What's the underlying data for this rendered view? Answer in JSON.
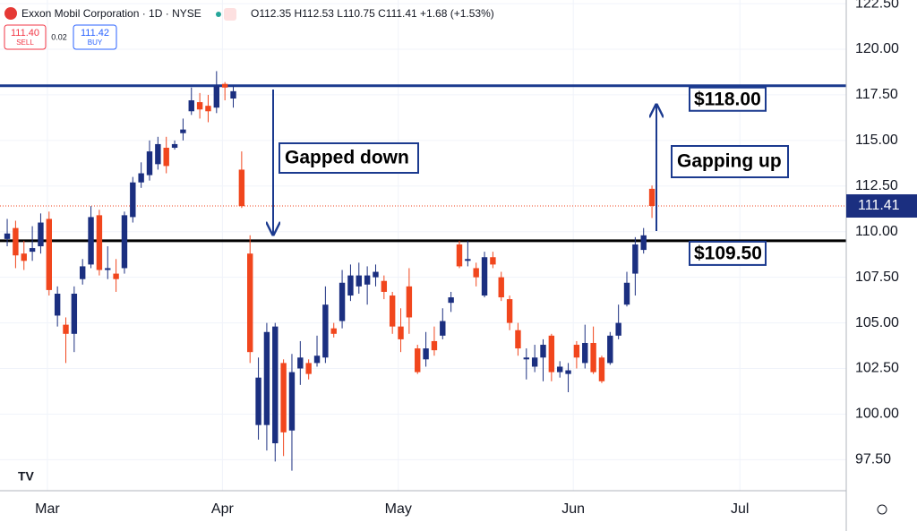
{
  "header": {
    "symbol": "Exxon Mobil Corporation · 1D · NYSE",
    "ohlc": "O112.35 H112.53 L110.75 C111.41 +1.68 (+1.53%)",
    "sell_price": "111.40",
    "sell": "SELL",
    "spread": "0.02",
    "buy_price": "111.42",
    "buy": "BUY"
  },
  "chart_data": {
    "type": "candlestick",
    "categories": [
      null,
      null,
      null,
      null,
      null,
      null,
      null,
      null,
      null,
      null,
      null,
      null,
      null,
      null,
      null,
      null,
      null,
      null,
      null,
      null,
      null,
      null,
      null,
      null,
      null,
      null,
      null,
      null,
      null,
      null,
      null,
      null,
      null,
      null,
      null,
      null,
      null,
      null,
      null,
      null,
      null,
      null,
      null,
      null,
      null,
      null,
      null,
      null,
      null,
      null,
      null,
      null,
      null,
      null,
      null,
      null,
      null,
      null,
      null,
      null,
      null,
      null,
      null,
      null,
      null,
      null,
      null,
      null,
      null,
      null,
      null,
      null,
      null,
      null,
      null,
      null,
      null,
      null
    ],
    "open": [
      109.6,
      110.2,
      108.8,
      108.9,
      109.2,
      110.7,
      105.4,
      104.9,
      104.4,
      107.4,
      108.2,
      110.9,
      107.9,
      107.7,
      108.0,
      110.8,
      112.7,
      113.1,
      113.7,
      114.6,
      114.6,
      115.4,
      116.6,
      117.1,
      116.9,
      116.8,
      118.1,
      117.3,
      113.4,
      108.8,
      99.4,
      99.4,
      98.4,
      102.8,
      99.1,
      102.5,
      102.8,
      102.8,
      103.1,
      104.7,
      105.1,
      106.5,
      107.0,
      107.1,
      107.5,
      107.3,
      106.5,
      104.8,
      107.0,
      103.6,
      103.0,
      104.0,
      104.3,
      106.1,
      109.3,
      108.4,
      108.0,
      106.5,
      108.6,
      107.5,
      106.3,
      104.6,
      103.0,
      102.6,
      103.1,
      104.3,
      102.3,
      102.2,
      103.8,
      102.8,
      103.9,
      103.1,
      102.8,
      104.3,
      106.0,
      107.7,
      109.0,
      112.35
    ],
    "high": [
      110.7,
      110.6,
      109.5,
      110.3,
      111.0,
      111.1,
      107.0,
      105.3,
      107.0,
      108.5,
      111.4,
      111.2,
      109.2,
      108.5,
      111.1,
      113.0,
      113.8,
      115.0,
      115.2,
      115.2,
      115.0,
      116.2,
      117.9,
      117.6,
      117.5,
      118.8,
      118.2,
      118.0,
      114.4,
      109.8,
      103.1,
      105.0,
      105.0,
      103.0,
      103.3,
      104.0,
      103.0,
      104.3,
      107.0,
      105.0,
      107.9,
      108.2,
      108.3,
      108.1,
      108.2,
      107.6,
      106.7,
      105.8,
      108.0,
      103.8,
      104.5,
      104.8,
      105.8,
      106.7,
      109.5,
      109.5,
      108.3,
      108.9,
      108.9,
      107.8,
      106.5,
      105.0,
      103.6,
      103.8,
      104.1,
      104.4,
      102.9,
      102.8,
      104.0,
      104.9,
      104.8,
      103.2,
      104.5,
      106.0,
      107.8,
      109.7,
      110.2,
      112.53
    ],
    "low": [
      109.2,
      108.0,
      107.9,
      108.4,
      108.8,
      106.5,
      104.8,
      102.8,
      103.4,
      107.1,
      108.0,
      107.6,
      107.4,
      106.7,
      107.7,
      110.5,
      112.4,
      112.8,
      113.4,
      113.2,
      114.5,
      115.0,
      116.4,
      116.2,
      116.0,
      116.5,
      117.2,
      116.8,
      111.3,
      102.8,
      98.6,
      98.0,
      97.4,
      97.7,
      96.9,
      101.6,
      101.9,
      102.6,
      102.8,
      104.2,
      104.7,
      106.2,
      106.6,
      106.0,
      107.0,
      106.3,
      104.4,
      103.4,
      104.4,
      102.2,
      102.6,
      103.2,
      104.1,
      105.6,
      108.0,
      108.1,
      107.0,
      106.4,
      108.0,
      106.2,
      104.6,
      103.2,
      101.9,
      102.3,
      101.8,
      101.8,
      102.0,
      101.2,
      102.5,
      102.5,
      102.2,
      101.7,
      102.7,
      104.1,
      105.9,
      106.5,
      108.8,
      110.75
    ],
    "close": [
      109.9,
      108.7,
      108.4,
      109.1,
      110.5,
      106.8,
      106.6,
      104.4,
      106.6,
      108.1,
      110.8,
      107.9,
      108.0,
      107.4,
      110.9,
      112.7,
      113.2,
      114.4,
      114.8,
      113.6,
      114.8,
      115.6,
      117.2,
      116.7,
      116.6,
      118.0,
      117.9,
      117.7,
      111.4,
      103.4,
      102.0,
      104.5,
      104.8,
      99.0,
      102.3,
      103.1,
      102.2,
      103.2,
      106.0,
      104.4,
      107.2,
      107.6,
      107.6,
      107.6,
      107.8,
      106.7,
      104.8,
      104.1,
      105.3,
      102.3,
      103.6,
      103.5,
      105.1,
      106.4,
      108.1,
      108.5,
      107.5,
      108.6,
      108.2,
      106.4,
      105.0,
      103.6,
      103.1,
      103.1,
      103.8,
      102.3,
      102.6,
      102.4,
      103.1,
      103.9,
      102.3,
      101.8,
      104.3,
      105.0,
      107.2,
      109.3,
      109.8,
      111.41
    ],
    "up_color": "#1b2f80",
    "down_color": "#f1461d",
    "xlim": [
      -0.86,
      100.2
    ],
    "xticks": [
      {
        "value": 4.8,
        "label": "Mar"
      },
      {
        "value": 25.7,
        "label": "Apr"
      },
      {
        "value": 46.7,
        "label": "May"
      },
      {
        "value": 67.6,
        "label": "Jun"
      },
      {
        "value": 87.5,
        "label": "Jul"
      }
    ],
    "ylim": [
      95.8,
      122.7
    ],
    "yticks": [
      {
        "value": 97.5,
        "label": "97.50"
      },
      {
        "value": 100,
        "label": "100.00"
      },
      {
        "value": 102.5,
        "label": "102.50"
      },
      {
        "value": 105,
        "label": "105.00"
      },
      {
        "value": 107.5,
        "label": "107.50"
      },
      {
        "value": 110,
        "label": "110.00"
      },
      {
        "value": 112.5,
        "label": "112.50"
      },
      {
        "value": 115,
        "label": "115.00"
      },
      {
        "value": 117.5,
        "label": "117.50"
      },
      {
        "value": 120,
        "label": "120.00"
      },
      {
        "value": 122.5,
        "label": "122.50"
      }
    ],
    "grid": true,
    "last_price": 111.41,
    "last_price_color": "#1b2f80",
    "levels": [
      {
        "value": 118,
        "label": "$118.00",
        "color": "#1b3a8f"
      },
      {
        "value": 109.5,
        "label": "$109.50",
        "color": "#000000"
      }
    ],
    "annotations": [
      "Gapped down",
      "Gapping up"
    ]
  }
}
